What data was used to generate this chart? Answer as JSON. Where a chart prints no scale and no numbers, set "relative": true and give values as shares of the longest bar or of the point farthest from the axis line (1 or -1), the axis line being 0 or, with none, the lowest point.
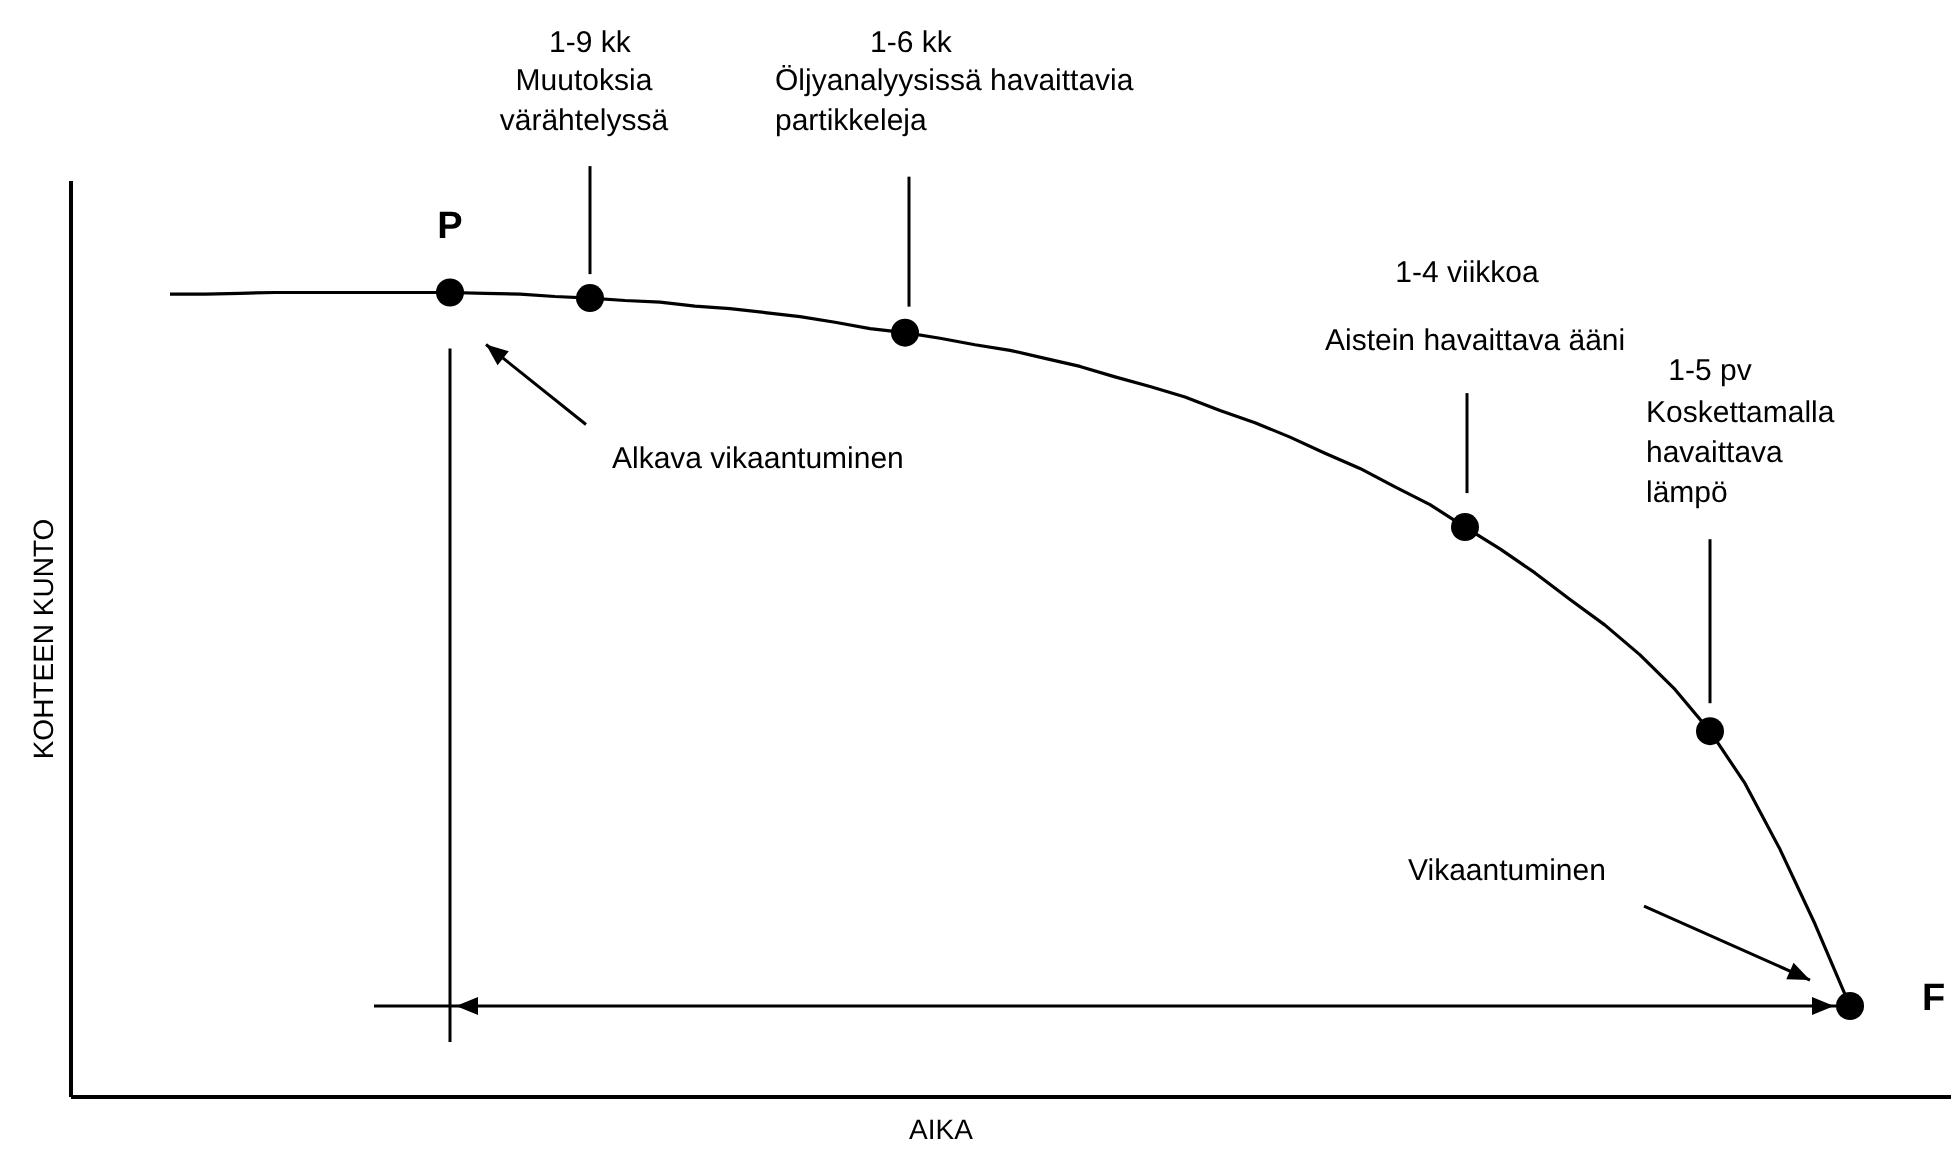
{
  "chart_data": {
    "type": "line",
    "relative": true,
    "xlabel": "AIKA",
    "ylabel": "KOHTEEN KUNTO",
    "grid": false,
    "categories": [
      null,
      null,
      null,
      null,
      null,
      null,
      null,
      null,
      null,
      null,
      null,
      null,
      null,
      null,
      null,
      null,
      null,
      null,
      null,
      null,
      null,
      null,
      null,
      null,
      null,
      null,
      null,
      null,
      null,
      null,
      null,
      null,
      null,
      null,
      null,
      null,
      null,
      null,
      null,
      null,
      null,
      null,
      null,
      null,
      null,
      null,
      null,
      null,
      null
    ],
    "series": [
      {
        "color": "#000000",
        "values": [
          0.998,
          0.998,
          0.999,
          1.0,
          1.0,
          1.0,
          1.0,
          1.0,
          1.0,
          0.999,
          0.998,
          0.995,
          0.993,
          0.99,
          0.988,
          0.983,
          0.98,
          0.975,
          0.97,
          0.963,
          0.955,
          0.95,
          0.943,
          0.935,
          0.928,
          0.918,
          0.908,
          0.895,
          0.883,
          0.87,
          0.853,
          0.838,
          0.82,
          0.8,
          0.781,
          0.758,
          0.736,
          0.708,
          0.681,
          0.651,
          0.618,
          0.586,
          0.549,
          0.506,
          0.454,
          0.389,
          0.307,
          0.214,
          0.112
        ]
      }
    ],
    "annotations": [
      "1-9 kk",
      "Muutoksia värähtelyssä",
      "1-6 kk",
      "Öljyanalyysissä havaittavia partikkeleja",
      "1-4 viikkoa",
      "Aistein havaittava ääni",
      "1-5 pv",
      "Koskettamalla havaittava lämpö",
      "Alkava vikaantuminen",
      "Vikaantuminen",
      "P",
      "F"
    ]
  }
}
